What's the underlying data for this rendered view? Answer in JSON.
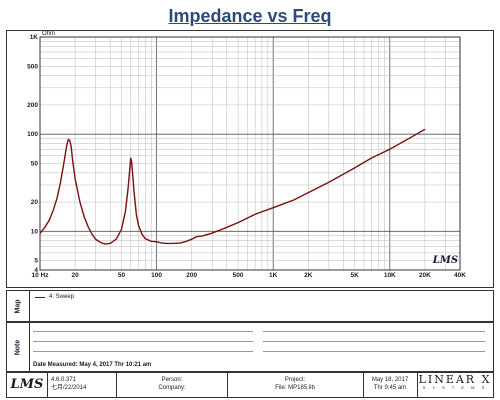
{
  "title": "Impedance vs Freq",
  "chart_data": {
    "type": "line",
    "title": "Impedance vs Freq",
    "xlabel": "Hz",
    "ylabel": "Ohm",
    "x_scale": "log",
    "y_scale": "log",
    "xlim": [
      10,
      40000
    ],
    "ylim": [
      4,
      1000
    ],
    "grid": true,
    "x_ticks": [
      "10 Hz",
      "20",
      "50",
      "100",
      "200",
      "500",
      "1K",
      "2K",
      "5K",
      "10K",
      "20K",
      "40K"
    ],
    "x_tick_values": [
      10,
      20,
      50,
      100,
      200,
      500,
      1000,
      2000,
      5000,
      10000,
      20000,
      40000
    ],
    "y_ticks": [
      "1K",
      "500",
      "200",
      "100",
      "50",
      "20",
      "10",
      "5",
      "4"
    ],
    "y_tick_values": [
      1000,
      500,
      200,
      100,
      50,
      20,
      10,
      5,
      4
    ],
    "series": [
      {
        "name": "4: Sweep",
        "color": "#7a1010",
        "x": [
          10,
          11,
          12,
          13,
          14,
          15,
          16,
          17,
          17.5,
          18,
          18.5,
          19,
          20,
          22,
          24,
          26,
          28,
          30,
          33,
          36,
          40,
          45,
          50,
          54,
          57,
          59,
          60,
          61,
          62,
          64,
          67,
          70,
          75,
          80,
          90,
          100,
          110,
          120,
          140,
          160,
          180,
          200,
          220,
          250,
          300,
          350,
          400,
          500,
          700,
          1000,
          1500,
          2000,
          3000,
          5000,
          7000,
          10000,
          15000,
          20000
        ],
        "y": [
          9.5,
          11,
          13,
          16.5,
          22,
          32,
          50,
          78,
          88,
          86,
          75,
          55,
          35,
          20,
          14,
          11,
          9.3,
          8.3,
          7.7,
          7.4,
          7.5,
          8.3,
          10.5,
          16,
          28,
          45,
          57,
          52,
          42,
          26,
          15,
          11.5,
          9.3,
          8.4,
          7.9,
          7.8,
          7.6,
          7.5,
          7.5,
          7.6,
          7.9,
          8.3,
          8.8,
          9.0,
          9.6,
          10.3,
          11.0,
          12.3,
          15.0,
          17.5,
          21,
          25,
          32,
          45,
          57,
          70,
          92,
          112
        ]
      }
    ],
    "annotation": "LMS"
  },
  "map_panel": {
    "label": "Map",
    "legend": "4: Sweep"
  },
  "note_panel": {
    "label": "Note",
    "date_measured": "Date Measured: May  4, 2017  Thr 10:21 am"
  },
  "footer": {
    "logo": "LMS",
    "version": "4.6.0.371",
    "version_date": "七月/22/2014",
    "person": "Person:",
    "company": "Company:",
    "project": "Project:",
    "file": "File: MP185.lib",
    "date": "May 18, 2017",
    "time": "Thr  9:45 am",
    "brand": "LINEAR X",
    "brand_sub": "S Y S T E M S"
  },
  "colors": {
    "title": "#2e4a7a",
    "trace": "#7a1010",
    "grid": "#b8b8b8",
    "border": "#333333"
  }
}
